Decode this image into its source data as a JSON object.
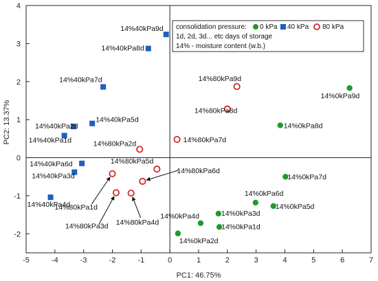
{
  "chart_data": {
    "type": "scatter",
    "xlabel": "PC1: 46.75%",
    "ylabel": "PC2: 13.37%",
    "xlim": [
      -5,
      7
    ],
    "ylim": [
      -2.5,
      4
    ],
    "xticks": [
      "-5",
      "-4",
      "-3",
      "-2",
      "-1",
      "0",
      "1",
      "2",
      "3",
      "4",
      "5",
      "6",
      "7"
    ],
    "yticks": [
      "-2",
      "-1",
      "0",
      "1",
      "2",
      "3",
      "4"
    ],
    "zero_lines": true,
    "legend": {
      "position": "top-right",
      "line1_prefix": "consolidation pressure:",
      "line2": "1d, 2d, 3d... etc days of storage",
      "line3": "14% - moisture content (w.b.)"
    },
    "series": [
      {
        "name": "0 kPa",
        "marker": "circle-filled",
        "color": "#1f9a2e",
        "points": [
          {
            "label": "14%0kPa1d",
            "x": 1.72,
            "y": -1.82
          },
          {
            "label": "14%0kPa2d",
            "x": 0.28,
            "y": -1.99
          },
          {
            "label": "14%0kPa3d",
            "x": 1.69,
            "y": -1.47
          },
          {
            "label": "14%0kPa4d",
            "x": 1.07,
            "y": -1.72
          },
          {
            "label": "14%0kPa5d",
            "x": 3.6,
            "y": -1.27
          },
          {
            "label": "14%0kPa6d",
            "x": 2.98,
            "y": -1.18
          },
          {
            "label": "14%0kPa7d",
            "x": 4.02,
            "y": -0.5
          },
          {
            "label": "14%0kPa8d",
            "x": 3.84,
            "y": 0.85
          },
          {
            "label": "14%0kPa9d",
            "x": 6.25,
            "y": 1.83
          }
        ]
      },
      {
        "name": "40 kPa",
        "marker": "square-filled",
        "color": "#1f5fbf",
        "points": [
          {
            "label": "14%40kPa1d",
            "x": -3.67,
            "y": 0.58
          },
          {
            "label": "14%40kPa2d",
            "x": -3.35,
            "y": 0.82
          },
          {
            "label": "14%40kPa3d",
            "x": -3.32,
            "y": -0.38
          },
          {
            "label": "14%40kPa4d",
            "x": -4.15,
            "y": -1.04
          },
          {
            "label": "14%40kPa5d",
            "x": -2.7,
            "y": 0.9
          },
          {
            "label": "14%40kPa6d",
            "x": -3.06,
            "y": -0.15
          },
          {
            "label": "14%40kPa7d",
            "x": -2.32,
            "y": 1.86
          },
          {
            "label": "14%40kPa8d",
            "x": -0.75,
            "y": 2.87
          },
          {
            "label": "14%40kPa9d",
            "x": -0.13,
            "y": 3.24
          }
        ]
      },
      {
        "name": "80 kPa",
        "marker": "circle-open",
        "color": "#d42a2a",
        "points": [
          {
            "label": "14%80kPa1d",
            "x": -2.0,
            "y": -0.42
          },
          {
            "label": "14%80kPa2d",
            "x": -1.05,
            "y": 0.22
          },
          {
            "label": "14%80kPa3d",
            "x": -1.87,
            "y": -0.92
          },
          {
            "label": "14%80kPa4d",
            "x": -1.35,
            "y": -0.93
          },
          {
            "label": "14%80kPa5d",
            "x": -0.45,
            "y": -0.3
          },
          {
            "label": "14%80kPa6d",
            "x": -0.95,
            "y": -0.62
          },
          {
            "label": "14%80kPa7d",
            "x": 0.25,
            "y": 0.48
          },
          {
            "label": "14%80kPa8d",
            "x": 2.0,
            "y": 1.28
          },
          {
            "label": "14%80kPa9d",
            "x": 2.33,
            "y": 1.87
          }
        ]
      }
    ]
  }
}
